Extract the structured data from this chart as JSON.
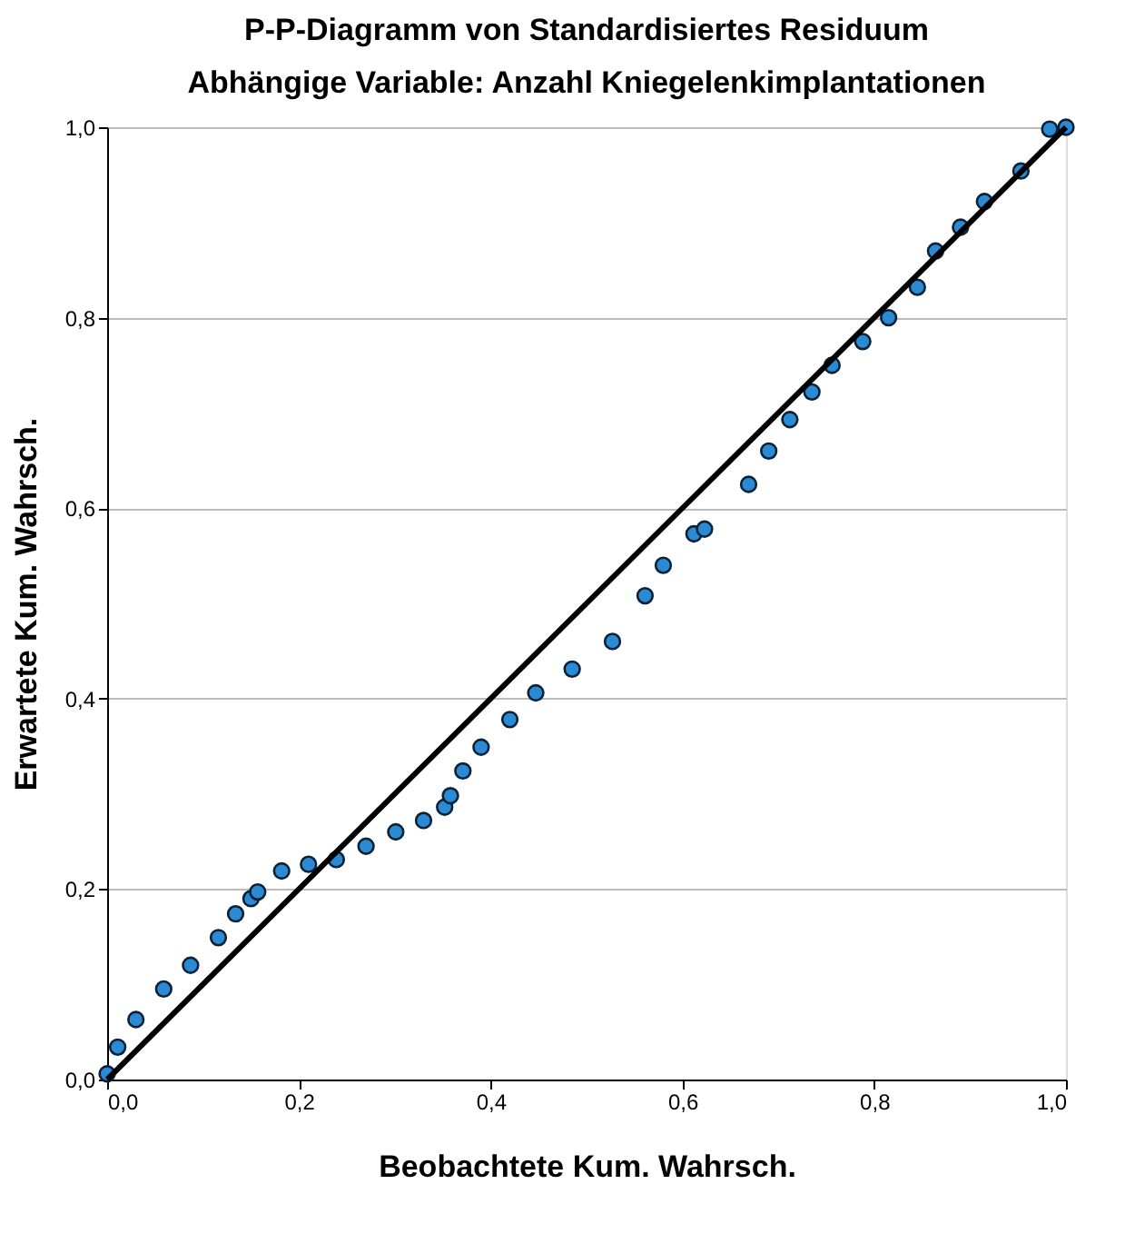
{
  "chart_data": {
    "type": "scatter",
    "title": "P-P-Diagramm von Standardisiertes Residuum",
    "subtitle": "Abhängige Variable: Anzahl Kniegelenkimplantationen",
    "xlabel": "Beobachtete Kum. Wahrsch.",
    "ylabel": "Erwartete Kum. Wahrsch.",
    "xlim": [
      0,
      1
    ],
    "ylim": [
      0,
      1
    ],
    "xticks": [
      {
        "value": 0,
        "label": "0,0"
      },
      {
        "value": 0.2,
        "label": "0,2"
      },
      {
        "value": 0.4,
        "label": "0,4"
      },
      {
        "value": 0.6,
        "label": "0,6"
      },
      {
        "value": 0.8,
        "label": "0,8"
      },
      {
        "value": 1,
        "label": "1,0"
      }
    ],
    "yticks": [
      {
        "value": 0,
        "label": "0,0"
      },
      {
        "value": 0.2,
        "label": "0,2"
      },
      {
        "value": 0.4,
        "label": "0,4"
      },
      {
        "value": 0.6,
        "label": "0,6"
      },
      {
        "value": 0.8,
        "label": "0,8"
      },
      {
        "value": 1,
        "label": "1,0"
      }
    ],
    "grid": "y",
    "series": [
      {
        "marker": "circle",
        "color": "#2a8ad4",
        "x": [
          0.0,
          0.011,
          0.03,
          0.059,
          0.087,
          0.116,
          0.134,
          0.15,
          0.157,
          0.182,
          0.21,
          0.239,
          0.27,
          0.301,
          0.33,
          0.352,
          0.358,
          0.371,
          0.39,
          0.42,
          0.447,
          0.485,
          0.527,
          0.561,
          0.58,
          0.612,
          0.623,
          0.669,
          0.69,
          0.712,
          0.735,
          0.756,
          0.788,
          0.815,
          0.845,
          0.864,
          0.89,
          0.915,
          0.953,
          0.983,
          1.0
        ],
        "values": [
          0.006,
          0.034,
          0.063,
          0.095,
          0.12,
          0.149,
          0.174,
          0.19,
          0.197,
          0.219,
          0.226,
          0.231,
          0.245,
          0.26,
          0.272,
          0.286,
          0.298,
          0.324,
          0.349,
          0.378,
          0.406,
          0.431,
          0.46,
          0.508,
          0.54,
          0.573,
          0.578,
          0.625,
          0.66,
          0.693,
          0.722,
          0.75,
          0.775,
          0.8,
          0.832,
          0.87,
          0.895,
          0.922,
          0.954,
          0.998,
          1.0
        ]
      },
      {
        "type": "line",
        "color": "#000000",
        "x": [
          0,
          1
        ],
        "values": [
          0,
          1
        ]
      }
    ]
  }
}
